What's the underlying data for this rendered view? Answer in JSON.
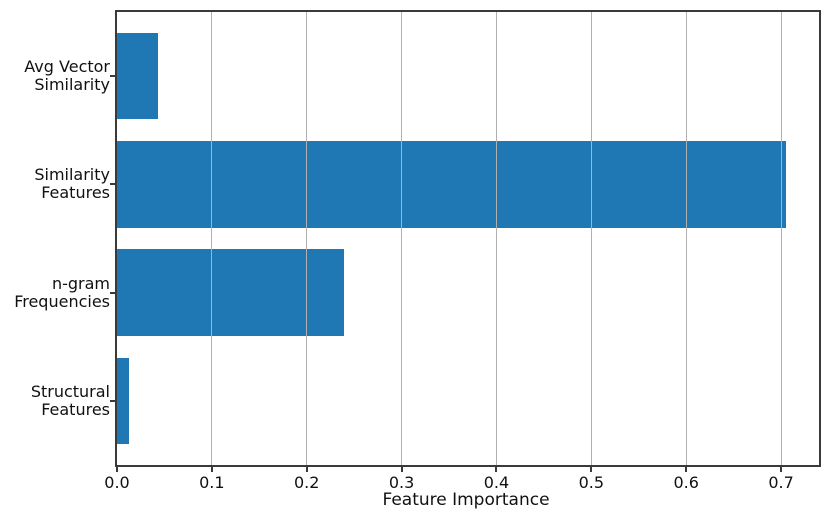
{
  "figure": {
    "background": "#ffffff"
  },
  "chart_data": {
    "type": "bar",
    "orientation": "horizontal",
    "title": "",
    "xlabel": "Feature Importance",
    "ylabel": "",
    "categories": [
      "Avg Vector\nSimilarity",
      "Similarity\nFeatures",
      "n-gram\nFrequencies",
      "Structural\nFeatures"
    ],
    "values": [
      0.043,
      0.705,
      0.239,
      0.013
    ],
    "xlim": [
      0,
      0.74
    ],
    "xticks": [
      0.0,
      0.1,
      0.2,
      0.3,
      0.4,
      0.5,
      0.6,
      0.7
    ],
    "xtick_labels": [
      "0.0",
      "0.1",
      "0.2",
      "0.3",
      "0.4",
      "0.5",
      "0.6",
      "0.7"
    ],
    "grid": "vertical",
    "legend_position": "none",
    "colors": {
      "bar": "#1f77b4",
      "grid": "#b0b0b0",
      "spine": "#3a3a3a",
      "text": "#111111"
    }
  }
}
